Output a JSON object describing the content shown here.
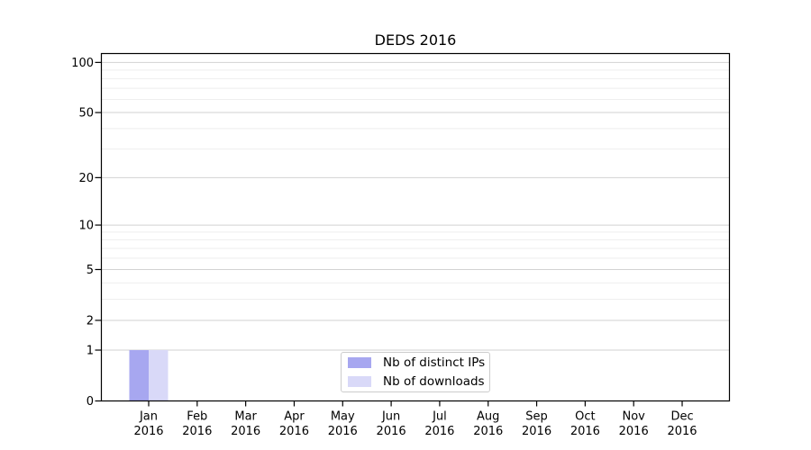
{
  "chart_data": {
    "type": "bar",
    "title": "DEDS 2016",
    "scale": "log1p",
    "grid": true,
    "ylim": [
      0,
      113
    ],
    "y_major_ticks": [
      0,
      1,
      2,
      5,
      10,
      20,
      50,
      100
    ],
    "y_minor_ticks": [
      3,
      4,
      6,
      7,
      8,
      9,
      30,
      40,
      60,
      70,
      80,
      90
    ],
    "categories": [
      [
        "Jan",
        "2016"
      ],
      [
        "Feb",
        "2016"
      ],
      [
        "Mar",
        "2016"
      ],
      [
        "Apr",
        "2016"
      ],
      [
        "May",
        "2016"
      ],
      [
        "Jun",
        "2016"
      ],
      [
        "Jul",
        "2016"
      ],
      [
        "Aug",
        "2016"
      ],
      [
        "Sep",
        "2016"
      ],
      [
        "Oct",
        "2016"
      ],
      [
        "Nov",
        "2016"
      ],
      [
        "Dec",
        "2016"
      ]
    ],
    "series": [
      {
        "name": "Nb of distinct IPs",
        "color": "#a7a7f0",
        "values": [
          1,
          0,
          0,
          0,
          0,
          0,
          0,
          0,
          0,
          0,
          0,
          0
        ]
      },
      {
        "name": "Nb of downloads",
        "color": "#d9d9f8",
        "values": [
          1,
          0,
          0,
          0,
          0,
          0,
          0,
          0,
          0,
          0,
          0,
          0
        ]
      }
    ],
    "legend": {
      "position": "bottom-center-inside"
    }
  },
  "colors": {
    "background": "#ffffff",
    "major_grid": "#d2d2d2",
    "minor_grid": "#eeeeee",
    "spine": "#000000",
    "text": "#000000",
    "legend_border": "#cccccc"
  }
}
